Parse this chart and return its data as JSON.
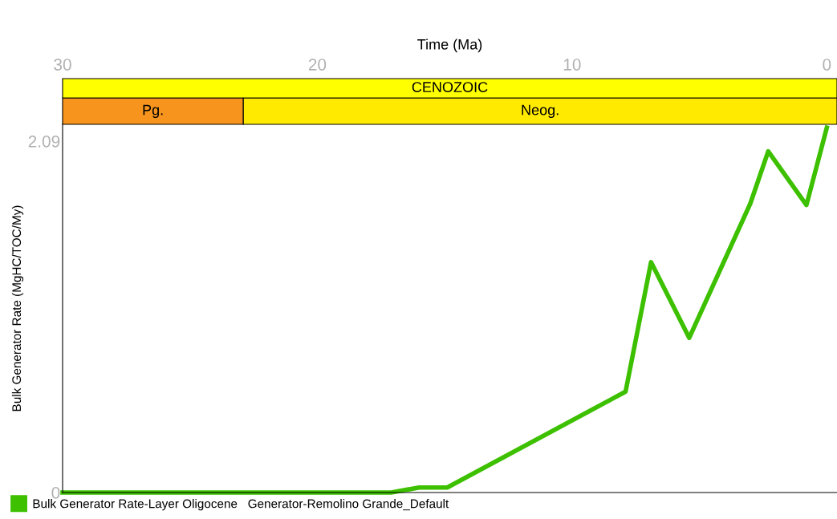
{
  "chart_data": {
    "type": "line",
    "xlabel": "Time (Ma)",
    "ylabel": "Bulk Generator Rate (MgHC/TOC/My)",
    "x": [
      30,
      17.1,
      16.0,
      14.9,
      7.9,
      6.9,
      5.4,
      3.0,
      2.3,
      0.8,
      0
    ],
    "series": [
      {
        "name": "Bulk Generator Rate-Layer Oligocene   Generator-Remolino Grande_Default",
        "color": "#3cc000",
        "values": [
          0,
          0,
          0.03,
          0.03,
          0.6,
          1.37,
          0.92,
          1.72,
          2.03,
          1.71,
          2.17
        ]
      }
    ],
    "xlim": [
      30,
      -0.4
    ],
    "xticks": [
      30,
      20,
      10,
      0
    ],
    "ylim": [
      0,
      2.19
    ],
    "yticks": [
      0,
      2.09
    ],
    "annotations": [
      "CENOZOIC",
      "Pg.",
      "Neog."
    ],
    "grid": false,
    "legend": "bottom",
    "marker": "none",
    "line_style": "solid"
  }
}
